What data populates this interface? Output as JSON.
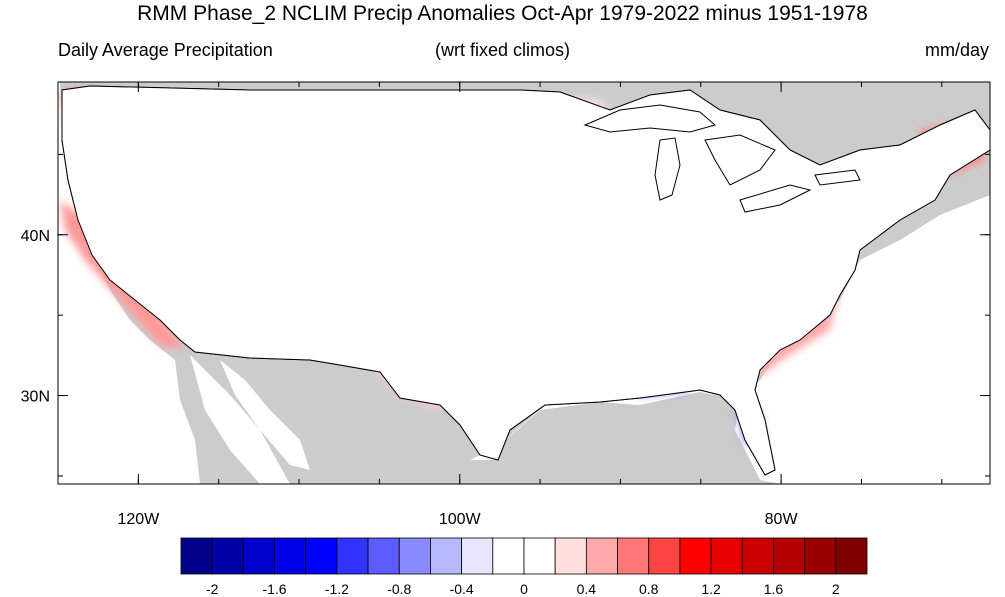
{
  "title": "RMM Phase_2 NCLIM Precip Anomalies Oct-Apr 1979-2022 minus 1951-1978",
  "subtitle_left": "Daily Average Precipitation",
  "subtitle_center": "(wrt fixed climos)",
  "subtitle_right": "mm/day",
  "map": {
    "lon_range": [
      -125,
      -67
    ],
    "lat_range": [
      24.5,
      49.5
    ],
    "lon_ticks": [
      {
        "value": -120,
        "label": "120W"
      },
      {
        "value": -100,
        "label": "100W"
      },
      {
        "value": -80,
        "label": "80W"
      }
    ],
    "lat_ticks": [
      {
        "value": 40,
        "label": "40N"
      },
      {
        "value": 30,
        "label": "30N"
      }
    ],
    "land_outside_color": "#cccccc",
    "water_color": "#ffffff"
  },
  "colorbar": {
    "colors": [
      "#00008b",
      "#0000a8",
      "#0000cc",
      "#0000e6",
      "#0000ff",
      "#3333ff",
      "#5c5cff",
      "#8a8aff",
      "#b8b8ff",
      "#e6e6ff",
      "#ffffff",
      "#ffffff",
      "#ffdede",
      "#ffaaaa",
      "#ff7777",
      "#ff4444",
      "#ff0000",
      "#e60000",
      "#cc0000",
      "#b30000",
      "#990000",
      "#800000"
    ],
    "labels": [
      "-2",
      "-1.6",
      "-1.2",
      "-0.8",
      "-0.4",
      "0",
      "0.4",
      "0.8",
      "1.2",
      "1.6",
      "2"
    ]
  }
}
